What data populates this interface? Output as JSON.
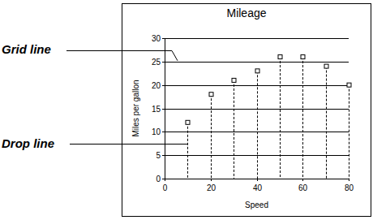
{
  "chart_data": {
    "type": "scatter",
    "title": "Mileage",
    "x_label": "Speed",
    "y_label": "Miles per gallon",
    "x": [
      10,
      20,
      30,
      40,
      50,
      60,
      70,
      80
    ],
    "values": [
      12,
      18,
      21,
      23,
      26,
      26,
      24,
      20
    ],
    "color": "#000000",
    "marker": "square",
    "line_style": "dashed",
    "xlim": [
      0,
      80
    ],
    "xticks": [
      0,
      20,
      40,
      60,
      80
    ],
    "ylim": [
      0,
      30
    ],
    "yticks": [
      0,
      5,
      10,
      15,
      20,
      25,
      30
    ],
    "grid": true,
    "annotations": [
      "Grid line",
      "Drop line"
    ]
  }
}
